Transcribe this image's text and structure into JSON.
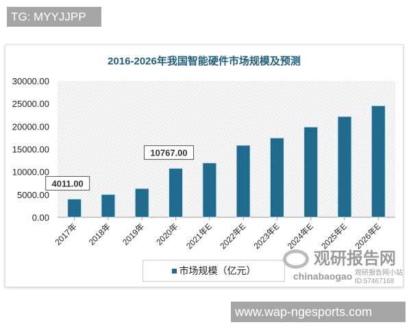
{
  "overlay": {
    "tg_label": "TG: MYYJJPP",
    "site_label": "www.wap-ngesports.com"
  },
  "watermark": {
    "brand": "观研报告网",
    "domain": "chinabaogao",
    "account": "观研报告网小站",
    "id": "ID:57467168"
  },
  "chart_data": {
    "type": "bar",
    "title": "2016-2026年我国智能硬件市场规模及预测",
    "categories": [
      "2017年",
      "2018年",
      "2019年",
      "2020年",
      "2021年E",
      "2022年E",
      "2023年E",
      "2024年E",
      "2025年E",
      "2026年E"
    ],
    "series": [
      {
        "name": "市场规模（亿元）",
        "values": [
          4011,
          5020,
          6330,
          10767,
          11960,
          15840,
          17450,
          19860,
          22170,
          24540
        ],
        "color": "#1f6b8e"
      }
    ],
    "data_labels": [
      {
        "index": 0,
        "text": "4011.00"
      },
      {
        "index": 3,
        "text": "10767.00"
      }
    ],
    "yticks": [
      "0.00",
      "5000.00",
      "10000.00",
      "15000.00",
      "20000.00",
      "25000.00",
      "30000.00"
    ],
    "ylim": [
      0,
      30000
    ],
    "grid": false,
    "legend": "bottom",
    "title_color": "#1f5f7a"
  }
}
